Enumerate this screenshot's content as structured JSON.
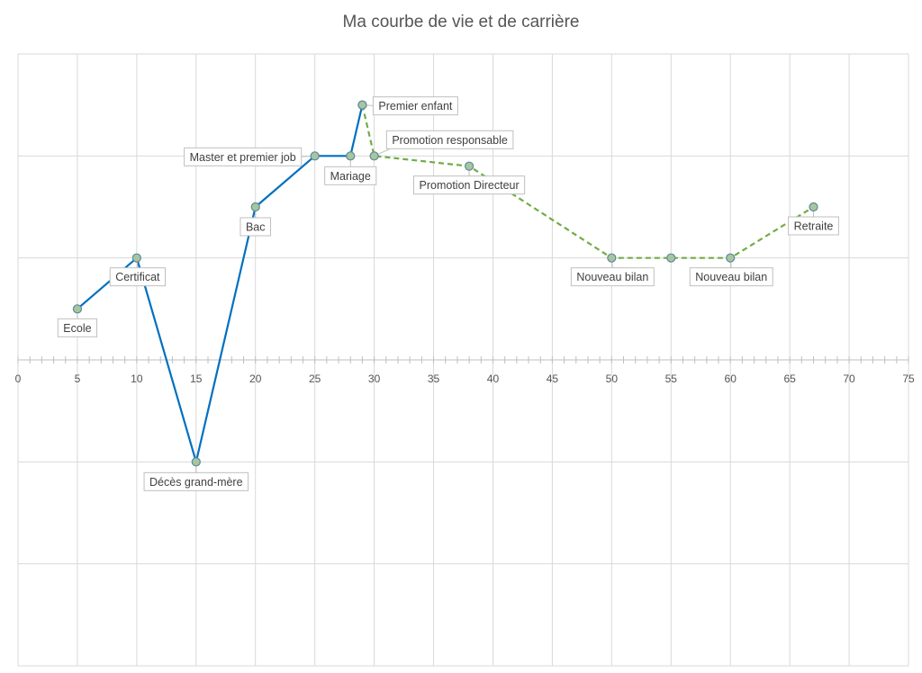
{
  "chart_data": {
    "type": "line",
    "title": "Ma courbe de vie et de carrière",
    "xlabel": "",
    "ylabel": "",
    "xlim": [
      0,
      75
    ],
    "xticks": [
      0,
      5,
      10,
      15,
      20,
      25,
      30,
      35,
      40,
      45,
      50,
      55,
      60,
      65,
      70,
      75
    ],
    "ylim": [
      -3,
      3
    ],
    "grid": true,
    "legend": "none",
    "series": [
      {
        "style": "solid",
        "color": "#0070C0",
        "points": [
          {
            "x": 5,
            "y": 0.5,
            "label": "Ecole"
          },
          {
            "x": 10,
            "y": 1,
            "label": "Certificat"
          },
          {
            "x": 15,
            "y": -1,
            "label": "Décès grand-mère"
          },
          {
            "x": 20,
            "y": 1.5,
            "label": "Bac"
          },
          {
            "x": 25,
            "y": 2,
            "label": "Master et premier job"
          },
          {
            "x": 28,
            "y": 2,
            "label": "Mariage"
          },
          {
            "x": 29,
            "y": 2.5,
            "label": "Premier enfant"
          }
        ]
      },
      {
        "style": "dashed",
        "color": "#70AD47",
        "points": [
          {
            "x": 29,
            "y": 2.5,
            "label": ""
          },
          {
            "x": 30,
            "y": 2,
            "label": "Promotion responsable"
          },
          {
            "x": 38,
            "y": 1.9,
            "label": "Promotion Directeur"
          },
          {
            "x": 50,
            "y": 1,
            "label": "Nouveau bilan"
          },
          {
            "x": 55,
            "y": 1,
            "label": ""
          },
          {
            "x": 60,
            "y": 1,
            "label": "Nouveau bilan"
          },
          {
            "x": 67,
            "y": 1.5,
            "label": "Retraite"
          }
        ]
      }
    ],
    "colors": {
      "grid": "#d9d9d9",
      "axis": "#bfbfbf",
      "marker_fill": "#a9c5a0",
      "marker_stroke": "#5a8a9a",
      "callout_border": "#bfbfbf"
    }
  }
}
